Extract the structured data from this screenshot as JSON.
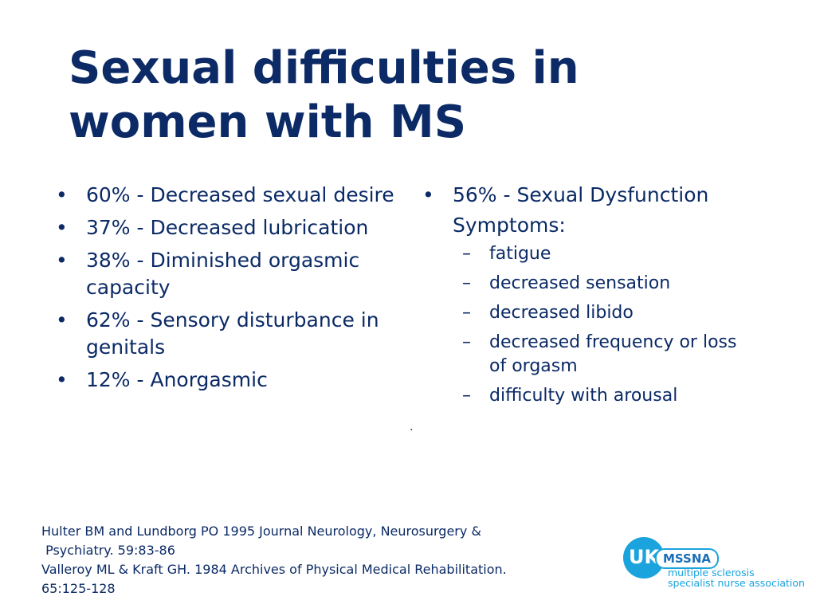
{
  "slide": {
    "title": "Sexual difficulties in women with MS",
    "left_column": {
      "bullets": [
        "60% - Decreased sexual desire",
        "37% - Decreased lubrication",
        "38% - Diminished orgasmic capacity",
        "62% - Sensory disturbance in genitals",
        "12% - Anorgasmic"
      ]
    },
    "right_column": {
      "bullet": "56% - Sexual Dysfunction",
      "symptoms_label": "Symptoms:",
      "symptoms": [
        "fatigue",
        "decreased sensation",
        "decreased libido",
        "decreased frequency or loss of orgasm",
        "difficulty with arousal"
      ]
    },
    "glyphs": {
      "bullet": "•",
      "dash": "–",
      "dot": "."
    },
    "references": [
      "Hulter BM and Lundborg PO 1995 Journal Neurology, Neurosurgery &",
      " Psychiatry. 59:83-86",
      "Valleroy ML & Kraft GH. 1984 Archives of Physical Medical Rehabilitation.",
      "65:125-128"
    ],
    "logo": {
      "badge": "UK",
      "acronym": "MSSNA",
      "line1": "multiple sclerosis",
      "line2": "specialist nurse association",
      "colors": {
        "circle": "#1aa3dc",
        "acronym": "#1a6fb8",
        "text": "#1aa3dc"
      }
    },
    "colors": {
      "text": "#0b2a66",
      "background": "#ffffff"
    }
  }
}
